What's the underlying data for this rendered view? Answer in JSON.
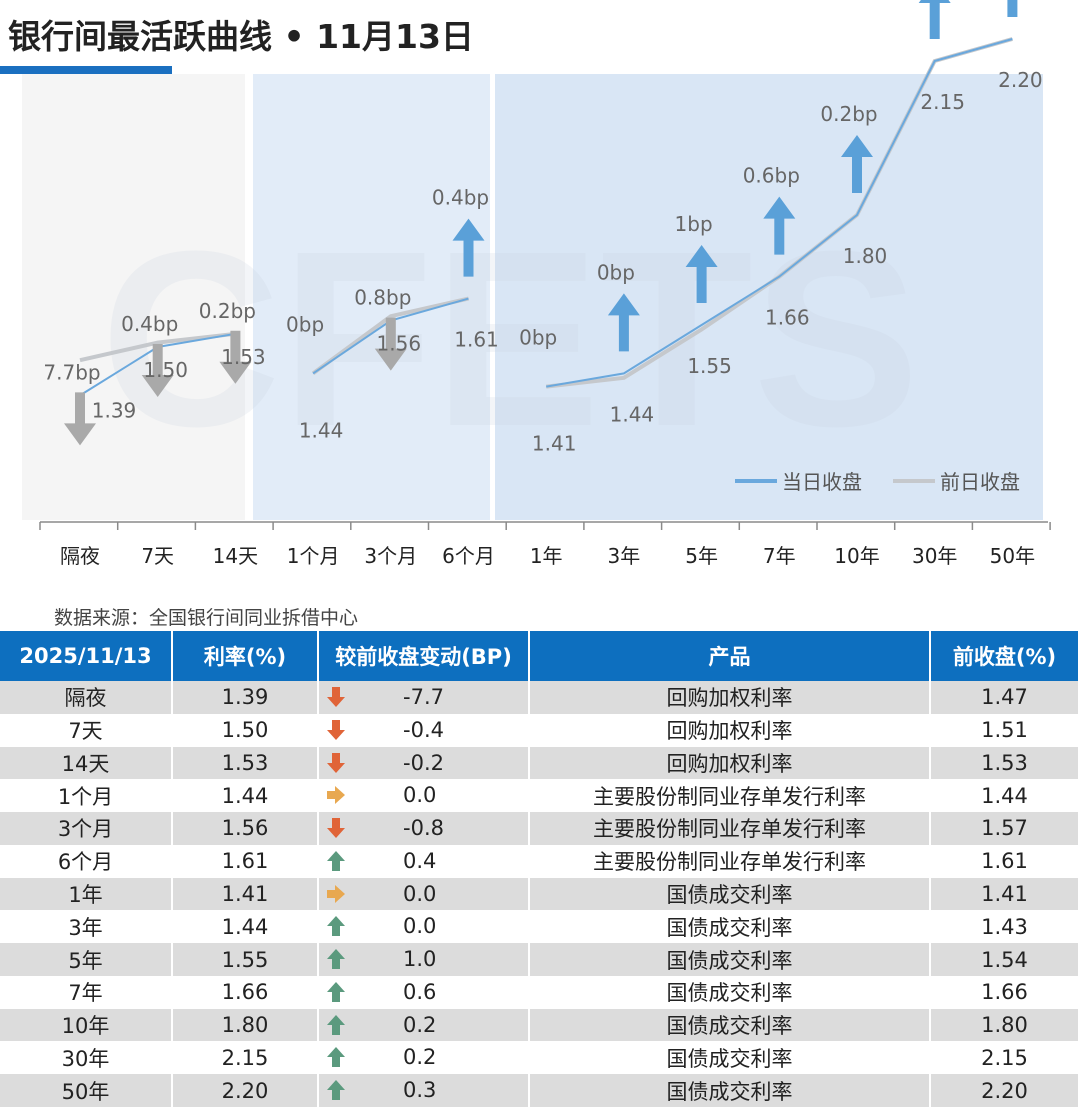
{
  "header": {
    "title": "银行间最活跃曲线 • 11月13日"
  },
  "colors": {
    "today": "#6aa8dd",
    "prev": "#c5c8cc",
    "up": "#5aa0d8",
    "down": "#a9a9a9",
    "table_header": "#0d6fbf",
    "up_icon": "#5b9a7e",
    "down_icon": "#e06438",
    "flat_icon": "#e8a850"
  },
  "chart_data": {
    "type": "line",
    "categories": [
      "隔夜",
      "7天",
      "14天",
      "1个月",
      "3个月",
      "6个月",
      "1年",
      "3年",
      "5年",
      "7年",
      "10年",
      "30年",
      "50年"
    ],
    "groups": [
      [
        0,
        2
      ],
      [
        3,
        5
      ],
      [
        6,
        12
      ]
    ],
    "series": [
      {
        "name": "当日收盘",
        "values": [
          1.39,
          1.5,
          1.53,
          1.44,
          1.56,
          1.61,
          1.41,
          1.44,
          1.55,
          1.66,
          1.8,
          2.15,
          2.2
        ]
      },
      {
        "name": "前日收盘",
        "values": [
          1.47,
          1.51,
          1.53,
          1.44,
          1.57,
          1.61,
          1.41,
          1.43,
          1.54,
          1.66,
          1.8,
          2.15,
          2.2
        ]
      }
    ],
    "changes": [
      "7.7bp",
      "0.4bp",
      "0.2bp",
      "0bp",
      "0.8bp",
      "0.4bp",
      "0bp",
      "0bp",
      "1bp",
      "0.6bp",
      "0.2bp",
      "0.2bp",
      "0.3bp"
    ],
    "directions": [
      "down",
      "down",
      "down",
      "flat",
      "down",
      "up",
      "flat",
      "up",
      "up",
      "up",
      "up",
      "up",
      "up"
    ],
    "watermark": "CFETS",
    "legend_position": "bottom-right"
  },
  "source": "数据来源：全国银行间同业拆借中心",
  "table": {
    "headers": [
      "2025/11/13",
      "利率(%)",
      "较前收盘变动(BP)",
      "产品",
      "前收盘(%)"
    ],
    "rows": [
      {
        "term": "隔夜",
        "rate": "1.39",
        "dir": "down",
        "change": "-7.7",
        "product": "回购加权利率",
        "prev": "1.47"
      },
      {
        "term": "7天",
        "rate": "1.50",
        "dir": "down",
        "change": "-0.4",
        "product": "回购加权利率",
        "prev": "1.51"
      },
      {
        "term": "14天",
        "rate": "1.53",
        "dir": "down",
        "change": "-0.2",
        "product": "回购加权利率",
        "prev": "1.53"
      },
      {
        "term": "1个月",
        "rate": "1.44",
        "dir": "flat",
        "change": "0.0",
        "product": "主要股份制同业存单发行利率",
        "prev": "1.44"
      },
      {
        "term": "3个月",
        "rate": "1.56",
        "dir": "down",
        "change": "-0.8",
        "product": "主要股份制同业存单发行利率",
        "prev": "1.57"
      },
      {
        "term": "6个月",
        "rate": "1.61",
        "dir": "up",
        "change": "0.4",
        "product": "主要股份制同业存单发行利率",
        "prev": "1.61"
      },
      {
        "term": "1年",
        "rate": "1.41",
        "dir": "flat",
        "change": "0.0",
        "product": "国债成交利率",
        "prev": "1.41"
      },
      {
        "term": "3年",
        "rate": "1.44",
        "dir": "up",
        "change": "0.0",
        "product": "国债成交利率",
        "prev": "1.43"
      },
      {
        "term": "5年",
        "rate": "1.55",
        "dir": "up",
        "change": "1.0",
        "product": "国债成交利率",
        "prev": "1.54"
      },
      {
        "term": "7年",
        "rate": "1.66",
        "dir": "up",
        "change": "0.6",
        "product": "国债成交利率",
        "prev": "1.66"
      },
      {
        "term": "10年",
        "rate": "1.80",
        "dir": "up",
        "change": "0.2",
        "product": "国债成交利率",
        "prev": "1.80"
      },
      {
        "term": "30年",
        "rate": "2.15",
        "dir": "up",
        "change": "0.2",
        "product": "国债成交利率",
        "prev": "2.15"
      },
      {
        "term": "50年",
        "rate": "2.20",
        "dir": "up",
        "change": "0.3",
        "product": "国债成交利率",
        "prev": "2.20"
      }
    ]
  }
}
